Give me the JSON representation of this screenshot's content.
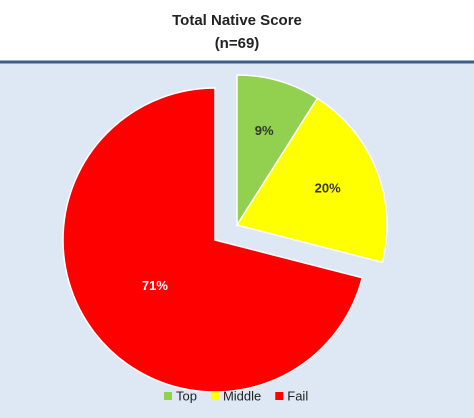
{
  "chart_data": {
    "type": "pie",
    "title": "Total Native Score",
    "subtitle": "(n=69)",
    "categories": [
      "Top",
      "Middle",
      "Fail"
    ],
    "values": [
      9,
      20,
      71
    ],
    "value_labels": [
      "9%",
      "20%",
      "71%"
    ],
    "colors": [
      "#92d050",
      "#ffff00",
      "#ff0000"
    ],
    "explode": [
      true,
      true,
      false
    ],
    "legend": "bottom"
  }
}
